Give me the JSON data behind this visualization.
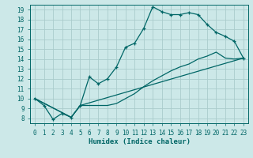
{
  "xlabel": "Humidex (Indice chaleur)",
  "bg_color": "#cce8e8",
  "line_color": "#006666",
  "grid_color": "#aacccc",
  "xlim": [
    -0.5,
    23.5
  ],
  "ylim": [
    7.5,
    19.5
  ],
  "xticks": [
    0,
    1,
    2,
    3,
    4,
    5,
    6,
    7,
    8,
    9,
    10,
    11,
    12,
    13,
    14,
    15,
    16,
    17,
    18,
    19,
    20,
    21,
    22,
    23
  ],
  "yticks": [
    8,
    9,
    10,
    11,
    12,
    13,
    14,
    15,
    16,
    17,
    18,
    19
  ],
  "line1_x": [
    0,
    1,
    2,
    3,
    4,
    5,
    6,
    7,
    8,
    9,
    10,
    11,
    12,
    13,
    14,
    15,
    16,
    17,
    18,
    19,
    20,
    21,
    22,
    23
  ],
  "line1_y": [
    10.0,
    9.3,
    7.9,
    8.5,
    8.1,
    9.3,
    12.2,
    11.5,
    12.0,
    13.2,
    15.2,
    15.6,
    17.1,
    19.3,
    18.8,
    18.5,
    18.5,
    18.7,
    18.5,
    17.5,
    16.7,
    16.3,
    15.8,
    14.1
  ],
  "line2_x": [
    0,
    4,
    5,
    6,
    7,
    8,
    9,
    10,
    11,
    12,
    13,
    14,
    15,
    16,
    17,
    18,
    19,
    20,
    21,
    22,
    23
  ],
  "line2_y": [
    10.0,
    8.1,
    9.3,
    9.3,
    9.3,
    9.3,
    9.5,
    10.0,
    10.5,
    11.2,
    11.8,
    12.3,
    12.8,
    13.2,
    13.5,
    14.0,
    14.3,
    14.7,
    14.1,
    14.0,
    14.1
  ],
  "line3_x": [
    0,
    4,
    5,
    23
  ],
  "line3_y": [
    10.0,
    8.1,
    9.3,
    14.1
  ]
}
